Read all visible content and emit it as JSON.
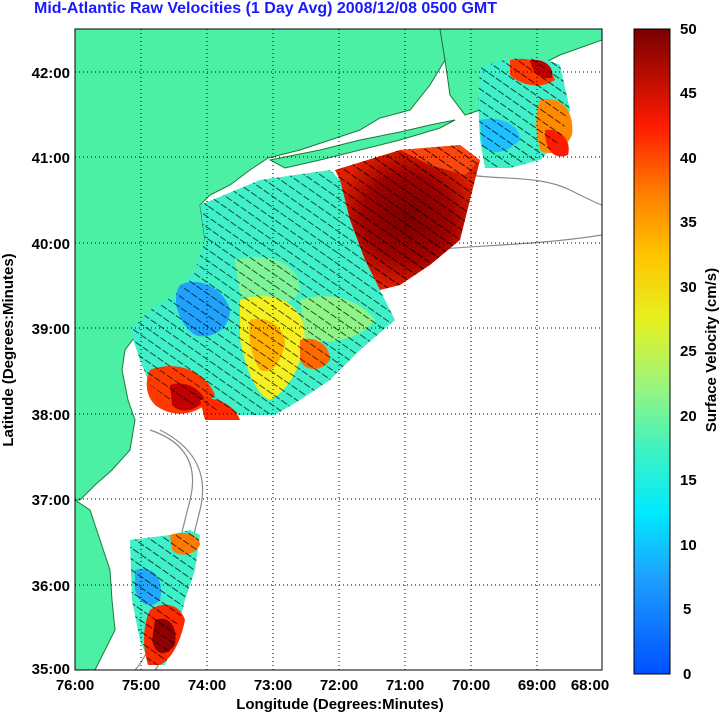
{
  "title": "Mid-Atlantic Raw Velocities (1 Day Avg) 2008/12/08 0500 GMT",
  "xlabel": "Longitude (Degrees:Minutes)",
  "ylabel": "Latitude (Degrees:Minutes)",
  "x_ticks": [
    "76:00",
    "75:00",
    "74:00",
    "73:00",
    "72:00",
    "71:00",
    "70:00",
    "69:00",
    "68:00"
  ],
  "y_ticks": [
    "42:00",
    "41:00",
    "40:00",
    "39:00",
    "38:00",
    "37:00",
    "36:00",
    "35:00"
  ],
  "colorbar": {
    "label": "Surface Velocity (cm/s)",
    "ticks": [
      "50",
      "45",
      "40",
      "35",
      "30",
      "25",
      "20",
      "15",
      "10",
      "5",
      "0"
    ],
    "range": [
      0,
      50
    ]
  },
  "colors": {
    "land": "#4cf0a4",
    "coast": "#1a7a3a",
    "title": "#1a1aff",
    "grid": "#000000"
  }
}
